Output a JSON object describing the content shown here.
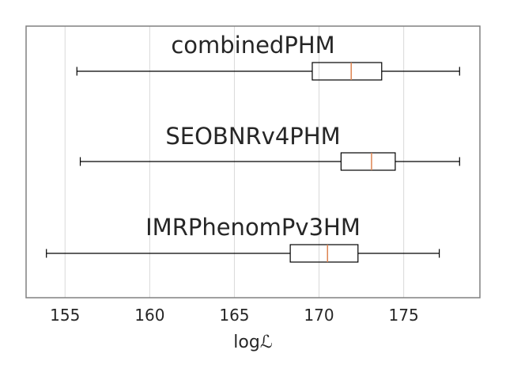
{
  "chart_data": {
    "type": "boxplot",
    "orientation": "horizontal",
    "xlabel": "log",
    "xlabel_symbol": "ℒ",
    "xlim": [
      152.7,
      179.5
    ],
    "xticks": [
      155,
      160,
      165,
      170,
      175
    ],
    "grid": "vertical",
    "colors": {
      "box": "#000000",
      "median": "#dd8452",
      "grid": "#d9d9d9",
      "frame": "#808080",
      "text": "#262626"
    },
    "series": [
      {
        "name": "combinedPHM",
        "whisker_low": 155.7,
        "q1": 169.6,
        "median": 171.9,
        "q3": 173.7,
        "whisker_high": 178.3
      },
      {
        "name": "SEOBNRv4PHM",
        "whisker_low": 155.9,
        "q1": 171.3,
        "median": 173.1,
        "q3": 174.5,
        "whisker_high": 178.3
      },
      {
        "name": "IMRPhenomPv3HM",
        "whisker_low": 153.9,
        "q1": 168.3,
        "median": 170.5,
        "q3": 172.3,
        "whisker_high": 177.1
      }
    ]
  }
}
